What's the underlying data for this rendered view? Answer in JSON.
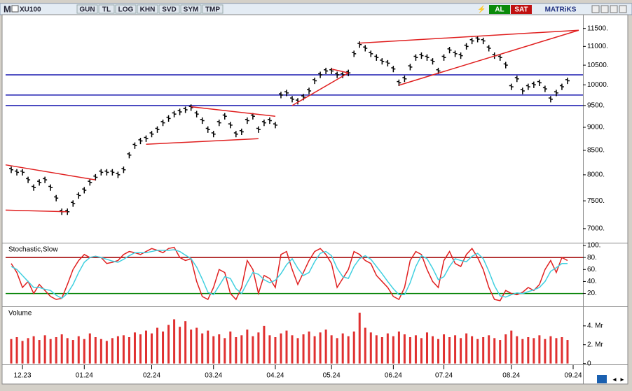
{
  "toolbar": {
    "logo": "M",
    "symbol": "XU100",
    "buttons": [
      "GUN",
      "TL",
      "LOG",
      "KHN",
      "SVD",
      "SYM",
      "TMP"
    ],
    "buy": "AL",
    "sell": "SAT",
    "brand": "MATRiKS"
  },
  "chart_data": [
    {
      "type": "ohlc",
      "color": "#000000",
      "log": true,
      "xlim": [
        -1,
        100
      ],
      "ylim": [
        6760,
        11900
      ],
      "yticks": [
        {
          "value": 11500,
          "label": "11500."
        },
        {
          "value": 11000,
          "label": "11000."
        },
        {
          "value": 10500,
          "label": "10500."
        },
        {
          "value": 10000,
          "label": "10000."
        },
        {
          "value": 9500,
          "label": "9500."
        },
        {
          "value": 9000,
          "label": "9000."
        },
        {
          "value": 8500,
          "label": "8500."
        },
        {
          "value": 8000,
          "label": "8000."
        },
        {
          "value": 7500,
          "label": "7500."
        },
        {
          "value": 7000,
          "label": "7000."
        }
      ],
      "values": [
        8100,
        8050,
        8050,
        7900,
        7750,
        7850,
        7900,
        7750,
        7550,
        7300,
        7300,
        7450,
        7600,
        7700,
        7850,
        7950,
        8050,
        8050,
        8050,
        8000,
        8100,
        8400,
        8600,
        8700,
        8750,
        8850,
        8950,
        9100,
        9200,
        9300,
        9350,
        9400,
        9450,
        9300,
        9150,
        8950,
        8850,
        9100,
        9250,
        9050,
        8850,
        8900,
        9150,
        9250,
        8950,
        9100,
        9150,
        9050,
        9750,
        9800,
        9650,
        9600,
        9700,
        9850,
        10100,
        10250,
        10350,
        10350,
        10250,
        10250,
        10300,
        10800,
        11050,
        10950,
        10800,
        10700,
        10600,
        10550,
        10400,
        10050,
        10150,
        10450,
        10700,
        10750,
        10700,
        10600,
        10350,
        10700,
        10900,
        10800,
        10750,
        11000,
        11150,
        11200,
        11150,
        10950,
        10750,
        10700,
        10500,
        9950,
        10150,
        9850,
        9950,
        10000,
        10050,
        9900,
        9650,
        9800,
        9950,
        10100
      ],
      "levels": {
        "color": "#1c1cb0",
        "values": [
          10250,
          9750,
          9500
        ]
      },
      "trendlines": {
        "color": "#e02020",
        "lines": [
          {
            "x": [
              -1,
              15
            ],
            "y": [
              8200,
              7900
            ]
          },
          {
            "x": [
              -1,
              10
            ],
            "y": [
              7330,
              7300
            ]
          },
          {
            "x": [
              24,
              44
            ],
            "y": [
              8630,
              8750
            ]
          },
          {
            "x": [
              32,
              47
            ],
            "y": [
              9470,
              9250
            ]
          },
          {
            "x": [
              50,
              60
            ],
            "y": [
              9500,
              10300
            ]
          },
          {
            "x": [
              57,
              60
            ],
            "y": [
              10400,
              10300
            ]
          },
          {
            "x": [
              62,
              101
            ],
            "y": [
              11090,
              11450
            ]
          },
          {
            "x": [
              69,
              101
            ],
            "y": [
              9990,
              11450
            ]
          }
        ]
      }
    },
    {
      "type": "line",
      "title": "Stochastic,Slow",
      "xlim": [
        -1,
        100
      ],
      "ylim": [
        -1.5,
        103.5
      ],
      "yticks": [
        {
          "value": 100,
          "label": "100."
        },
        {
          "value": 80,
          "label": "80."
        },
        {
          "value": 60,
          "label": "60."
        },
        {
          "value": 40,
          "label": "40."
        },
        {
          "value": 20,
          "label": "20."
        }
      ],
      "levels": [
        {
          "value": 80,
          "color": "#a00000"
        },
        {
          "value": 20,
          "color": "#008000"
        }
      ],
      "series": [
        {
          "color": "#e02020",
          "values": [
            70,
            55,
            30,
            40,
            20,
            35,
            25,
            15,
            10,
            12,
            35,
            60,
            75,
            85,
            80,
            82,
            80,
            70,
            72,
            75,
            85,
            90,
            88,
            85,
            90,
            95,
            92,
            88,
            95,
            97,
            80,
            75,
            78,
            40,
            15,
            10,
            30,
            60,
            55,
            20,
            10,
            30,
            75,
            60,
            20,
            50,
            45,
            30,
            85,
            90,
            60,
            35,
            55,
            75,
            90,
            95,
            85,
            70,
            30,
            45,
            60,
            90,
            85,
            75,
            70,
            50,
            40,
            30,
            15,
            10,
            30,
            75,
            90,
            85,
            60,
            40,
            30,
            75,
            90,
            70,
            65,
            85,
            95,
            80,
            60,
            30,
            10,
            8,
            25,
            20,
            18,
            22,
            30,
            25,
            35,
            60,
            75,
            55,
            80,
            75
          ]
        },
        {
          "color": "#40d0e0",
          "values": [
            65,
            60,
            50,
            40,
            30,
            30,
            27,
            25,
            17,
            12,
            20,
            35,
            55,
            72,
            80,
            82,
            80,
            77,
            74,
            72,
            77,
            83,
            88,
            88,
            88,
            90,
            92,
            92,
            92,
            93,
            90,
            84,
            78,
            64,
            44,
            22,
            18,
            33,
            48,
            45,
            28,
            20,
            38,
            55,
            52,
            43,
            38,
            42,
            53,
            68,
            78,
            62,
            50,
            55,
            73,
            87,
            90,
            83,
            62,
            48,
            45,
            65,
            78,
            83,
            77,
            65,
            53,
            40,
            28,
            18,
            18,
            38,
            65,
            83,
            78,
            62,
            43,
            48,
            65,
            78,
            75,
            73,
            82,
            87,
            78,
            57,
            33,
            16,
            14,
            18,
            21,
            20,
            23,
            26,
            30,
            40,
            57,
            63,
            70,
            70
          ]
        }
      ]
    },
    {
      "type": "bar",
      "title": "Volume",
      "color": "#e03030",
      "xlim": [
        -1,
        100
      ],
      "ylim": [
        -0.1,
        6
      ],
      "yticks": [
        {
          "value": 4,
          "label": "4. Mr"
        },
        {
          "value": 2,
          "label": "2. Mr"
        },
        0
      ],
      "xticks": [
        {
          "value": 2,
          "label": "12.23"
        },
        {
          "value": 13,
          "label": "01.24"
        },
        {
          "value": 25,
          "label": "02.24"
        },
        {
          "value": 36,
          "label": "03.24"
        },
        {
          "value": 47,
          "label": "04.24"
        },
        {
          "value": 57,
          "label": "05.24"
        },
        {
          "value": 68,
          "label": "06.24"
        },
        {
          "value": 77,
          "label": "07.24"
        },
        {
          "value": 89,
          "label": "08.24"
        },
        {
          "value": 100,
          "label": "09.24"
        }
      ],
      "values": [
        2.6,
        2.8,
        2.4,
        2.7,
        2.9,
        2.5,
        3.0,
        2.6,
        2.8,
        3.1,
        2.7,
        2.5,
        2.9,
        2.6,
        3.2,
        2.8,
        2.6,
        2.4,
        2.7,
        2.9,
        3.0,
        2.8,
        3.3,
        3.1,
        3.5,
        3.2,
        3.8,
        3.4,
        4.1,
        4.7,
        3.9,
        4.5,
        3.6,
        3.8,
        3.2,
        3.5,
        2.9,
        3.1,
        2.7,
        3.4,
        2.8,
        3.0,
        3.6,
        2.9,
        3.3,
        4.0,
        3.0,
        2.8,
        3.2,
        3.5,
        3.0,
        2.7,
        3.1,
        3.4,
        2.9,
        3.3,
        3.6,
        3.0,
        2.7,
        3.2,
        2.9,
        3.4,
        5.4,
        3.8,
        3.3,
        3.0,
        2.8,
        3.2,
        2.9,
        3.4,
        3.1,
        2.8,
        3.0,
        2.7,
        3.3,
        2.9,
        2.6,
        3.1,
        2.8,
        3.0,
        2.7,
        3.2,
        2.9,
        2.6,
        2.8,
        3.0,
        2.7,
        2.5,
        3.1,
        3.5,
        2.9,
        2.6,
        2.8,
        2.7,
        3.0,
        2.6,
        2.9,
        2.7,
        2.8,
        2.5
      ]
    }
  ]
}
